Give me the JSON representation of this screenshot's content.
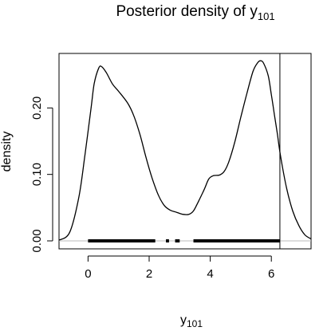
{
  "chart_data": {
    "type": "area",
    "title_main": "Posterior density of y",
    "title_sub": "101",
    "xlabel_main": "y",
    "xlabel_sub": "101",
    "ylabel": "density",
    "xlim": [
      -0.95,
      7.3
    ],
    "ylim": [
      -0.012,
      0.282
    ],
    "x_ticks": [
      0,
      2,
      4,
      6
    ],
    "x_tick_labels": [
      "0",
      "2",
      "4",
      "6"
    ],
    "y_ticks": [
      0.0,
      0.1,
      0.2
    ],
    "y_tick_labels": [
      "0.00",
      "0.10",
      "0.20"
    ],
    "vline_x": 6.28,
    "baseline_y": 0,
    "line_color": "#000000",
    "baseline_color": "#bbbbbb",
    "rug_segments": [
      [
        0.0,
        2.2
      ],
      [
        2.55,
        2.65
      ],
      [
        2.85,
        3.0
      ],
      [
        3.45,
        6.28
      ]
    ],
    "series": [
      {
        "x": [
          -0.95,
          -0.6,
          -0.3,
          -0.1,
          0.1,
          0.2,
          0.35,
          0.45,
          0.6,
          0.8,
          1.0,
          1.3,
          1.5,
          1.7,
          1.9,
          2.1,
          2.3,
          2.5,
          2.7,
          2.9,
          3.1,
          3.3,
          3.45,
          3.6,
          3.8,
          3.95,
          4.1,
          4.3,
          4.45,
          4.6,
          4.8,
          5.0,
          5.2,
          5.4,
          5.55,
          5.65,
          5.75,
          5.9,
          6.0,
          6.1,
          6.2,
          6.3,
          6.5,
          6.7,
          6.9,
          7.1,
          7.3
        ],
        "y": [
          0.001,
          0.013,
          0.066,
          0.13,
          0.2,
          0.236,
          0.26,
          0.262,
          0.253,
          0.236,
          0.225,
          0.207,
          0.188,
          0.16,
          0.125,
          0.094,
          0.069,
          0.053,
          0.046,
          0.043,
          0.04,
          0.04,
          0.045,
          0.058,
          0.077,
          0.093,
          0.098,
          0.099,
          0.104,
          0.118,
          0.148,
          0.186,
          0.222,
          0.255,
          0.268,
          0.271,
          0.267,
          0.248,
          0.22,
          0.19,
          0.16,
          0.128,
          0.079,
          0.045,
          0.023,
          0.009,
          0.003
        ]
      }
    ]
  }
}
